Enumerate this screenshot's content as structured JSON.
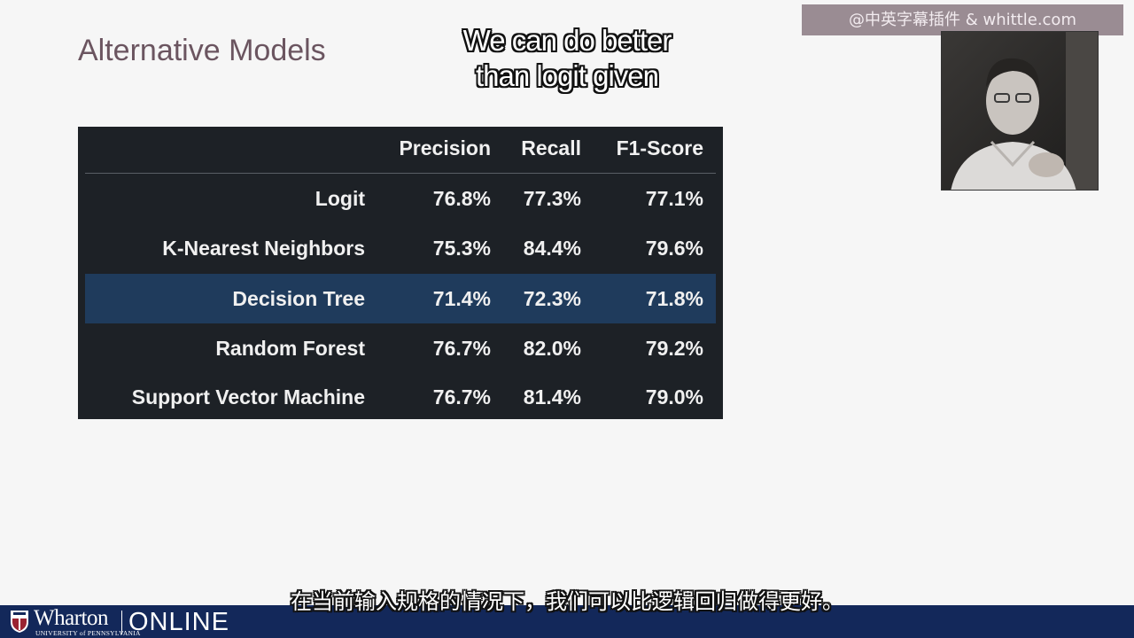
{
  "slide": {
    "title": "Alternative Models",
    "caption_en": [
      "We can do better",
      "than logit given"
    ],
    "watermark": "@中英字幕插件 & whittle.com",
    "subtitle_zh": "在当前输入规格的情况下，我们可以比逻辑回归做得更好。"
  },
  "table": {
    "headers": [
      "",
      "Precision",
      "Recall",
      "F1-Score"
    ],
    "rows": [
      {
        "model": "Logit",
        "precision": "76.8%",
        "recall": "77.3%",
        "f1": "77.1%"
      },
      {
        "model": "K-Nearest Neighbors",
        "precision": "75.3%",
        "recall": "84.4%",
        "f1": "79.6%"
      },
      {
        "model": "Decision Tree",
        "precision": "71.4%",
        "recall": "72.3%",
        "f1": "71.8%",
        "highlighted": true
      },
      {
        "model": "Random Forest",
        "precision": "76.7%",
        "recall": "82.0%",
        "f1": "79.2%"
      },
      {
        "model": "Support Vector Machine",
        "precision": "76.7%",
        "recall": "81.4%",
        "f1": "79.0%"
      }
    ],
    "colors": {
      "background": "#1d2126",
      "highlight": "#1f3b5c",
      "text": "#f0f0f0"
    }
  },
  "footer": {
    "brand": "Wharton",
    "university": "UNIVERSITY of PENNSYLVANIA",
    "product": "ONLINE",
    "color": "#13285a"
  },
  "webcam": {
    "icon": "presenter-video"
  }
}
